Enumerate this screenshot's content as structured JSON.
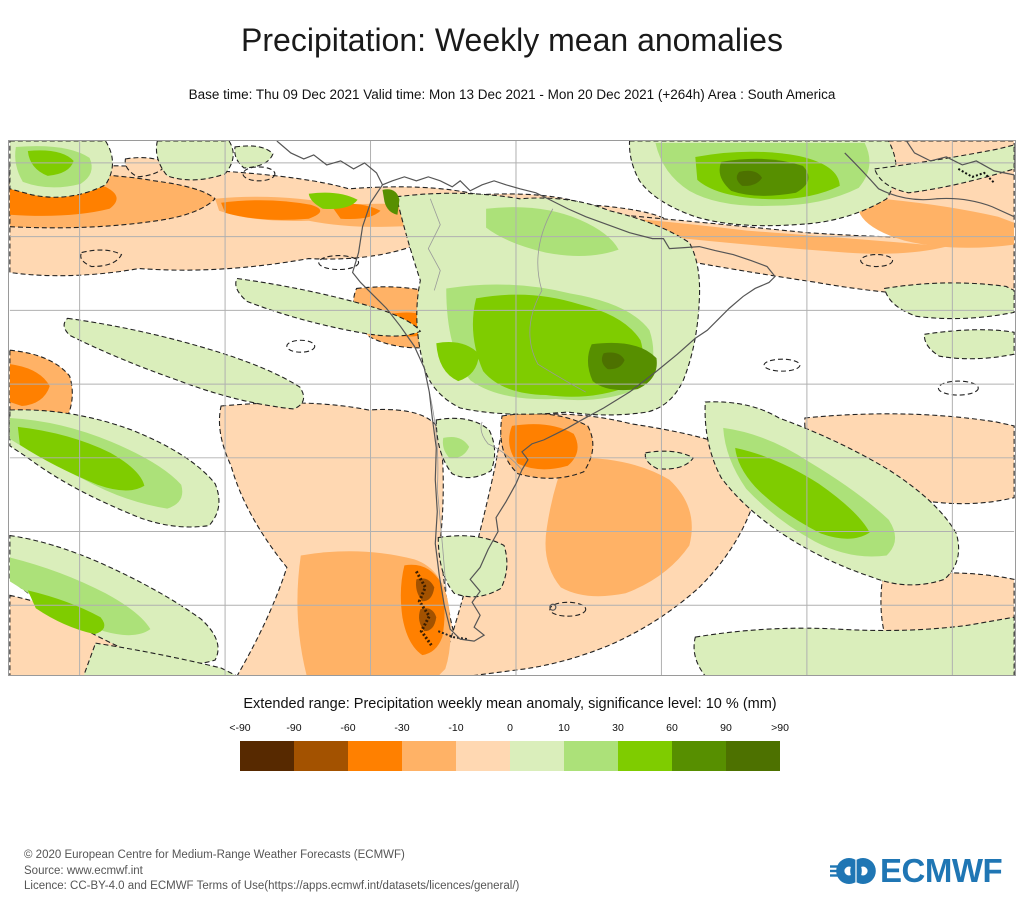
{
  "title": "Precipitation: Weekly mean anomalies",
  "subtitle": "Base time: Thu 09 Dec 2021 Valid time: Mon 13 Dec 2021 - Mon 20 Dec 2021 (+264h) Area : South America",
  "legend": {
    "title": "Extended range: Precipitation weekly mean anomaly, significance level: 10 % (mm)",
    "tick_labels": [
      "<-90",
      "-90",
      "-60",
      "-30",
      "-10",
      "0",
      "10",
      "30",
      "60",
      "90",
      ">90"
    ],
    "colors": [
      "#572900",
      "#a35200",
      "#ff8000",
      "#ffb266",
      "#ffd8b2",
      "#daeebb",
      "#ace179",
      "#7fcc00",
      "#578f00",
      "#4d7100"
    ]
  },
  "footer": {
    "line1": "© 2020 European Centre for Medium-Range Weather Forecasts (ECMWF)",
    "line2": "Source: www.ecmwf.int",
    "line3": "Licence: CC-BY-4.0 and ECMWF Terms of Use(https://apps.ecmwf.int/datasets/licences/general/)"
  },
  "logo": {
    "text": "ECMWF",
    "color": "#1f76b4"
  },
  "chart_data": {
    "type": "heatmap",
    "subtype": "filled_contour_map",
    "title": "Precipitation: Weekly mean anomalies",
    "variable": "Precipitation weekly mean anomaly",
    "units": "mm",
    "significance_level_percent": 10,
    "base_time": "Thu 09 Dec 2021",
    "valid_time_start": "Mon 13 Dec 2021",
    "valid_time_end": "Mon 20 Dec 2021",
    "lead_time": "+264h",
    "area": "South America",
    "levels_mm": [
      -90,
      -60,
      -30,
      -10,
      0,
      10,
      30,
      60,
      90
    ],
    "level_labels": [
      "<-90",
      "-90",
      "-60",
      "-30",
      "-10",
      "0",
      "10",
      "30",
      "60",
      "90",
      ">90"
    ],
    "palette": [
      "#572900",
      "#a35200",
      "#ff8000",
      "#ffb266",
      "#ffd8b2",
      "#daeebb",
      "#ace179",
      "#7fcc00",
      "#578f00",
      "#4d7100"
    ],
    "legend_position": "bottom",
    "graticule": true,
    "contour_style": "dashed significance outlines",
    "features": [
      {
        "region": "Eastern tropical Pacific ITCZ band west of Colombia/Ecuador",
        "anomaly_mm": "-30 to -90 (dry band)"
      },
      {
        "region": "Central Amazon / Mato Grosso, Brazil",
        "anomaly_mm": "+30 to +90 (wet, dark green core)"
      },
      {
        "region": "Tropical North Atlantic north of Brazil",
        "anomaly_mm": "+30 to +90 (wet, dark green core)"
      },
      {
        "region": "Uruguay / northeastern Argentina",
        "anomaly_mm": "-30 to -60 (dry)"
      },
      {
        "region": "Central-southern Chile and adjacent Pacific",
        "anomaly_mm": "-10 to -90 (dry, strongest along Andes)"
      },
      {
        "region": "Southwest Atlantic storm-track band",
        "anomaly_mm": "+10 to +60 (wet diagonal band)"
      },
      {
        "region": "Subtropical South Pacific",
        "anomaly_mm": "alternating +/-10 to 30 diagonal bands"
      },
      {
        "region": "Venezuela coast / southern Caribbean and adjacent Atlantic",
        "anomaly_mm": "-10 to -30 (dry)"
      },
      {
        "region": "Peru / western Bolivia",
        "anomaly_mm": "-30 to -60 (dry patch)"
      },
      {
        "region": "Southern Argentina east of Andes",
        "anomaly_mm": "+10 to +30 (wet patches)"
      }
    ]
  }
}
